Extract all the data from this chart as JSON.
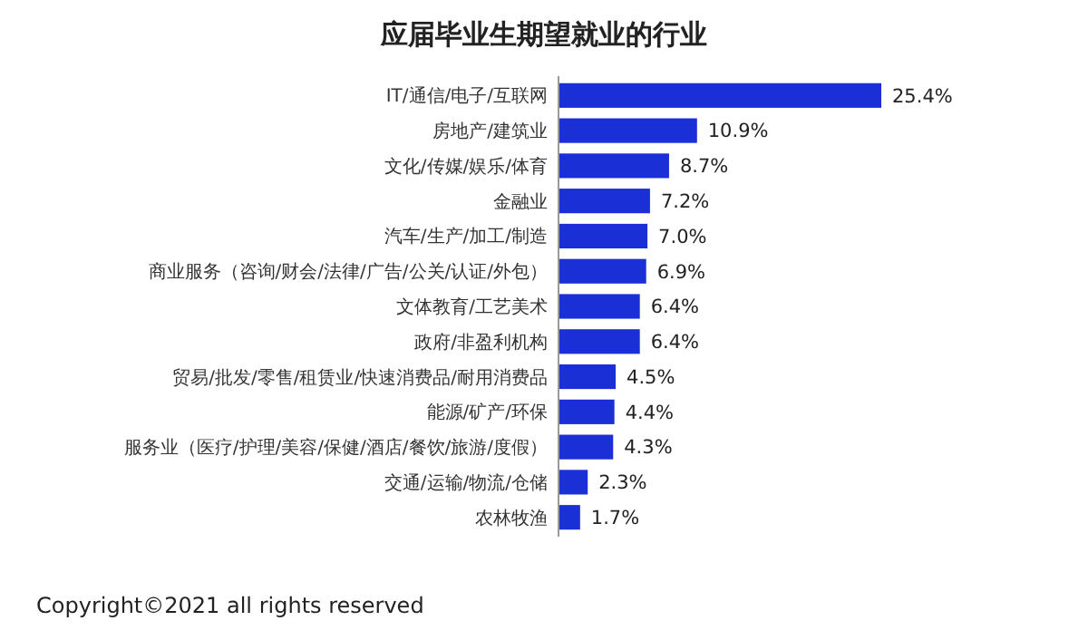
{
  "chart_data": {
    "type": "bar",
    "orientation": "horizontal",
    "title": "应届毕业生期望就业的行业",
    "categories": [
      "IT/通信/电子/互联网",
      "房地产/建筑业",
      "文化/传媒/娱乐/体育",
      "金融业",
      "汽车/生产/加工/制造",
      "商业服务（咨询/财会/法律/广告/公关/认证/外包）",
      "文体教育/工艺美术",
      "政府/非盈利机构",
      "贸易/批发/零售/租赁业/快速消费品/耐用消费品",
      "能源/矿产/环保",
      "服务业（医疗/护理/美容/保健/酒店/餐饮/旅游/度假）",
      "交通/运输/物流/仓储",
      "农林牧渔"
    ],
    "values": [
      25.4,
      10.9,
      8.7,
      7.2,
      7.0,
      6.9,
      6.4,
      6.4,
      4.5,
      4.4,
      4.3,
      2.3,
      1.7
    ],
    "value_labels": [
      "25.4%",
      "10.9%",
      "8.7%",
      "7.2%",
      "7.0%",
      "6.9%",
      "6.4%",
      "6.4%",
      "4.5%",
      "4.4%",
      "4.3%",
      "2.3%",
      "1.7%"
    ],
    "color": "#1a2fd6",
    "annotations": [
      "Copyright©2021 all rights reserved"
    ]
  }
}
